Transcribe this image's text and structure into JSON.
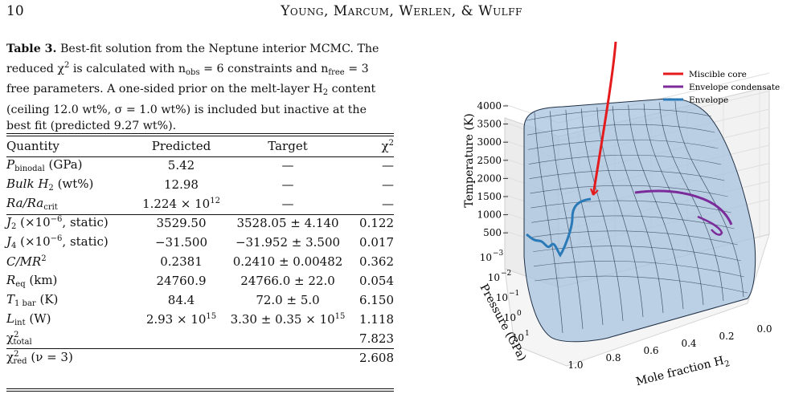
{
  "header": {
    "page_number": "10",
    "running_head": "Young, Marcum, Werlen, & Wulff"
  },
  "caption": {
    "label": "Table 3.",
    "text_1": "Best-fit solution from the Neptune interior MCMC. The reduced χ",
    "text_2": " is calculated with n",
    "text_3": " = 6 constraints and n",
    "text_4": " = 3 free parameters. A one-sided prior on the melt-layer H",
    "text_5": " content (ceiling 12.0 wt%, σ = 1.0 wt%) is included but inactive at the best fit (predicted 9.27 wt%).",
    "obs": "obs",
    "free": "free",
    "two": "2"
  },
  "table": {
    "headers": [
      "Quantity",
      "Predicted",
      "Target",
      "χ"
    ],
    "rows": [
      {
        "quantity": "P",
        "q_sub": "binodal",
        "q_tail": " (GPa)",
        "predicted": "5.42",
        "target": "—",
        "chi2": "—"
      },
      {
        "quantity": "Bulk H",
        "q_sub": "2",
        "q_tail": " (wt%)",
        "predicted": "12.98",
        "target": "—",
        "chi2": "—"
      },
      {
        "quantity": "Ra/Ra",
        "q_sub": "crit",
        "q_tail": "",
        "predicted": "1.224 × 10",
        "pred_sup": "12",
        "target": "—",
        "chi2": "—"
      },
      {
        "quantity": "J",
        "q_sub": "2",
        "q_tail": " (×10",
        "q_sup": "−6",
        "q_tail2": ", static)",
        "predicted": "3529.50",
        "target": "3528.05 ± 4.140",
        "chi2": "0.122"
      },
      {
        "quantity": "J",
        "q_sub": "4",
        "q_tail": " (×10",
        "q_sup": "−6",
        "q_tail2": ", static)",
        "predicted": "−31.500",
        "target": "−31.952 ± 3.500",
        "chi2": "0.017"
      },
      {
        "quantity": "C/MR",
        "q_sup": "2",
        "predicted": "0.2381",
        "target": "0.2410 ± 0.00482",
        "chi2": "0.362"
      },
      {
        "quantity": "R",
        "q_sub": "eq",
        "q_tail": " (km)",
        "predicted": "24760.9",
        "target": "24766.0 ± 22.0",
        "chi2": "0.054"
      },
      {
        "quantity": "T",
        "q_sub": "1 bar",
        "q_tail": " (K)",
        "predicted": "84.4",
        "target": "72.0 ± 5.0",
        "chi2": "6.150"
      },
      {
        "quantity": "L",
        "q_sub": "int",
        "q_tail": " (W)",
        "predicted": "2.93 × 10",
        "pred_sup": "15",
        "target": "3.30 ± 0.35 × 10",
        "target_sup": "15",
        "chi2": "1.118"
      }
    ],
    "total_label": "χ",
    "total_sub": "total",
    "total_value": "7.823",
    "red_label": "χ",
    "red_sub": "red",
    "red_tail": " (ν = 3)",
    "red_value": "2.608"
  },
  "figure": {
    "legend": [
      {
        "label": "Miscible core",
        "color": "#e41a1c"
      },
      {
        "label": "Envelope condensate",
        "color": "#7b2b9a"
      },
      {
        "label": "Envelope",
        "color": "#2a7ab8"
      }
    ],
    "z_label": "Temperature (K)",
    "z_ticks": [
      "4000",
      "3500",
      "3000",
      "2500",
      "2000",
      "1500",
      "1000",
      "500"
    ],
    "y_label": "Pressure (GPa)",
    "y_ticks": [
      "10",
      "10",
      "10",
      "10",
      "10"
    ],
    "y_tick_exps": [
      "−3",
      "−2",
      "−1",
      "0",
      "1"
    ],
    "x_label": "Mole fraction H",
    "x_label_sub": "2",
    "x_ticks": [
      "1.0",
      "0.8",
      "0.6",
      "0.4",
      "0.2",
      "0.0"
    ],
    "surface_color": "#a7c3de"
  }
}
